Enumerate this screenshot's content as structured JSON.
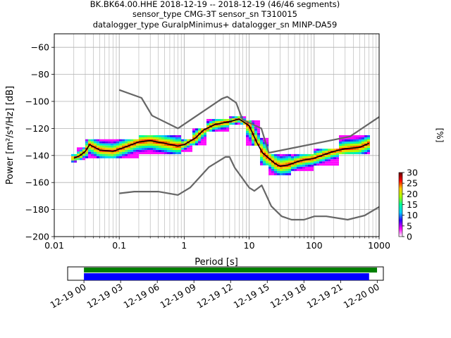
{
  "title": {
    "line1": "BK.BK64.00.HHE   2018-12-19 -- 2018-12-19  (46/46 segments)",
    "line2": "sensor_type CMG-3T sensor_sn T310015",
    "line3": "datalogger_type GuralpMinimus+ datalogger_sn MINP-DA59"
  },
  "chart_data": [
    {
      "type": "heatmap",
      "xlabel": "Period [s]",
      "ylabel": "Power [m²/s⁴/Hz] [dB]",
      "xscale": "log",
      "xlim": [
        0.01,
        1000
      ],
      "ylim": [
        -200,
        -50
      ],
      "xticks": [
        {
          "value": 0.01,
          "label": "0.01"
        },
        {
          "value": 0.1,
          "label": "0.1"
        },
        {
          "value": 1,
          "label": "1"
        },
        {
          "value": 10,
          "label": "10"
        },
        {
          "value": 100,
          "label": "100"
        },
        {
          "value": 1000,
          "label": "1000"
        }
      ],
      "yticks": [
        -60,
        -80,
        -100,
        -120,
        -140,
        -160,
        -180,
        -200
      ],
      "grid": true,
      "colorbar": {
        "label": "[%]",
        "ticks": [
          0,
          5,
          10,
          15,
          20,
          25,
          30
        ],
        "range": [
          0,
          30
        ],
        "colors": [
          "#ffffff",
          "#ff00ff",
          "#3300ff",
          "#00ccff",
          "#00ff99",
          "#aaff00",
          "#ffcc00",
          "#ff0000",
          "#660000"
        ]
      },
      "series": [
        {
          "name": "",
          "role": "mode",
          "color": "#000000",
          "x": [
            0.02,
            0.025,
            0.03,
            0.035,
            0.05,
            0.08,
            0.12,
            0.2,
            0.3,
            0.5,
            0.8,
            1,
            1.5,
            2,
            3,
            5,
            7,
            10,
            13,
            16,
            20,
            25,
            30,
            40,
            60,
            100,
            150,
            200,
            300,
            500,
            700
          ],
          "y": [
            -142,
            -140,
            -137,
            -132,
            -136,
            -137,
            -134,
            -130,
            -129,
            -131,
            -133,
            -132,
            -127,
            -121,
            -117,
            -115,
            -113,
            -118,
            -130,
            -138,
            -142,
            -146,
            -148,
            -147,
            -144,
            -142,
            -139,
            -137,
            -135,
            -134,
            -131
          ]
        },
        {
          "name": "",
          "role": "noise-model-high",
          "color": "#666666",
          "x": [
            0.1,
            0.22,
            0.32,
            0.8,
            3.8,
            4.6,
            6.3,
            7.9,
            15.4,
            20,
            354.8,
            1000
          ],
          "y": [
            -91.5,
            -97.4,
            -110.5,
            -120,
            -98,
            -96.5,
            -101,
            -113.5,
            -120,
            -138,
            -126,
            -111.5
          ]
        },
        {
          "name": "",
          "role": "noise-model-low",
          "color": "#666666",
          "x": [
            0.1,
            0.17,
            0.4,
            0.8,
            1.24,
            2.4,
            4.3,
            5,
            6,
            10,
            12,
            15.6,
            21.9,
            31.6,
            45,
            70,
            101,
            154,
            328,
            600,
            1000
          ],
          "y": [
            -168,
            -166.7,
            -166.7,
            -169.2,
            -163.7,
            -148.6,
            -141.1,
            -141.1,
            -149,
            -163.8,
            -166.2,
            -162.1,
            -177.5,
            -185,
            -187.5,
            -187.5,
            -185,
            -185,
            -187.5,
            -184.4,
            -178
          ]
        }
      ],
      "density": [
        {
          "x_from": 0.018,
          "x_to": 0.022,
          "y_from": -145,
          "y_to": -139
        },
        {
          "x_from": 0.022,
          "x_to": 0.03,
          "y_from": -142,
          "y_to": -134
        },
        {
          "x_from": 0.03,
          "x_to": 0.2,
          "y_from": -141,
          "y_to": -128
        },
        {
          "x_from": 0.2,
          "x_to": 0.9,
          "y_from": -139,
          "y_to": -125
        },
        {
          "x_from": 0.9,
          "x_to": 1.3,
          "y_from": -136,
          "y_to": -128
        },
        {
          "x_from": 1.3,
          "x_to": 2.2,
          "y_from": -132,
          "y_to": -120
        },
        {
          "x_from": 2.2,
          "x_to": 5,
          "y_from": -122,
          "y_to": -113
        },
        {
          "x_from": 5,
          "x_to": 9,
          "y_from": -117,
          "y_to": -111
        },
        {
          "x_from": 9,
          "x_to": 14,
          "y_from": -132,
          "y_to": -114
        },
        {
          "x_from": 14,
          "x_to": 20,
          "y_from": -146,
          "y_to": -127
        },
        {
          "x_from": 20,
          "x_to": 45,
          "y_from": -154,
          "y_to": -139
        },
        {
          "x_from": 45,
          "x_to": 100,
          "y_from": -150,
          "y_to": -139
        },
        {
          "x_from": 100,
          "x_to": 250,
          "y_from": -146,
          "y_to": -135
        },
        {
          "x_from": 250,
          "x_to": 700,
          "y_from": -138,
          "y_to": -125
        }
      ]
    },
    {
      "type": "bar",
      "orientation": "horizontal",
      "x_type": "datetime",
      "xlim": [
        "2018-12-18 22:40",
        "2018-12-20 00:30"
      ],
      "ticks": [
        "12-19 00",
        "12-19 03",
        "12-19 06",
        "12-19 09",
        "12-19 12",
        "12-19 15",
        "12-19 18",
        "12-19 21",
        "12-20 00"
      ],
      "series": [
        {
          "name": "",
          "color": "#008000",
          "from": "2018-12-19 00:00",
          "to": "2018-12-19 23:59"
        },
        {
          "name": "",
          "color": "#0000ff",
          "from": "2018-12-19 00:00",
          "to": "2018-12-19 23:20"
        }
      ]
    }
  ]
}
